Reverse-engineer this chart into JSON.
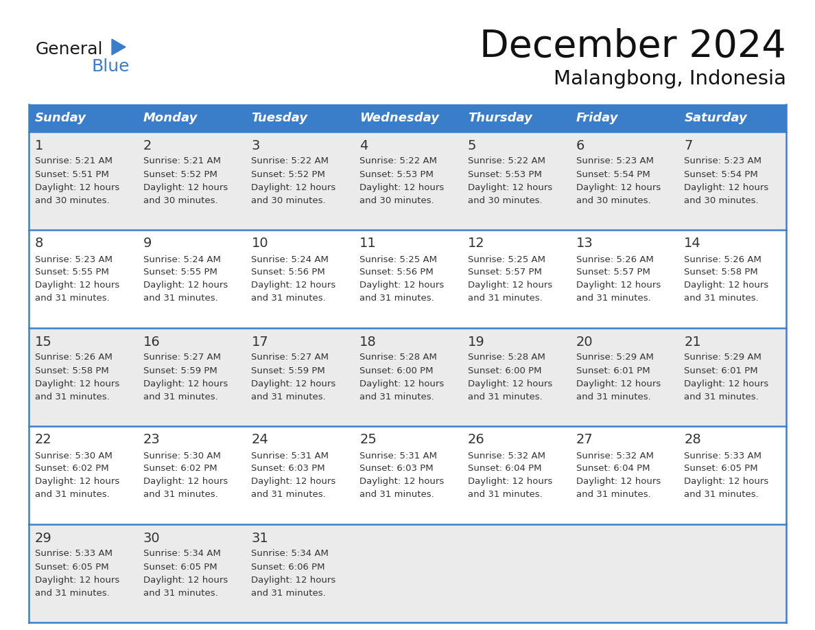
{
  "title": "December 2024",
  "subtitle": "Malangbong, Indonesia",
  "header_color": "#3A7DC9",
  "header_text_color": "#FFFFFF",
  "days_of_week": [
    "Sunday",
    "Monday",
    "Tuesday",
    "Wednesday",
    "Thursday",
    "Friday",
    "Saturday"
  ],
  "bg_color": "#FFFFFF",
  "row_bg_odd": "#EBEBEB",
  "row_bg_even": "#FFFFFF",
  "border_color": "#3A7DC9",
  "text_color": "#333333",
  "day_num_color": "#333333",
  "logo_general_color": "#1A1A1A",
  "logo_blue_color": "#3A7DC9",
  "calendar_data": [
    [
      {
        "day": 1,
        "sunrise": "5:21 AM",
        "sunset": "5:51 PM",
        "daylight_mins": "30"
      },
      {
        "day": 2,
        "sunrise": "5:21 AM",
        "sunset": "5:52 PM",
        "daylight_mins": "30"
      },
      {
        "day": 3,
        "sunrise": "5:22 AM",
        "sunset": "5:52 PM",
        "daylight_mins": "30"
      },
      {
        "day": 4,
        "sunrise": "5:22 AM",
        "sunset": "5:53 PM",
        "daylight_mins": "30"
      },
      {
        "day": 5,
        "sunrise": "5:22 AM",
        "sunset": "5:53 PM",
        "daylight_mins": "30"
      },
      {
        "day": 6,
        "sunrise": "5:23 AM",
        "sunset": "5:54 PM",
        "daylight_mins": "30"
      },
      {
        "day": 7,
        "sunrise": "5:23 AM",
        "sunset": "5:54 PM",
        "daylight_mins": "30"
      }
    ],
    [
      {
        "day": 8,
        "sunrise": "5:23 AM",
        "sunset": "5:55 PM",
        "daylight_mins": "31"
      },
      {
        "day": 9,
        "sunrise": "5:24 AM",
        "sunset": "5:55 PM",
        "daylight_mins": "31"
      },
      {
        "day": 10,
        "sunrise": "5:24 AM",
        "sunset": "5:56 PM",
        "daylight_mins": "31"
      },
      {
        "day": 11,
        "sunrise": "5:25 AM",
        "sunset": "5:56 PM",
        "daylight_mins": "31"
      },
      {
        "day": 12,
        "sunrise": "5:25 AM",
        "sunset": "5:57 PM",
        "daylight_mins": "31"
      },
      {
        "day": 13,
        "sunrise": "5:26 AM",
        "sunset": "5:57 PM",
        "daylight_mins": "31"
      },
      {
        "day": 14,
        "sunrise": "5:26 AM",
        "sunset": "5:58 PM",
        "daylight_mins": "31"
      }
    ],
    [
      {
        "day": 15,
        "sunrise": "5:26 AM",
        "sunset": "5:58 PM",
        "daylight_mins": "31"
      },
      {
        "day": 16,
        "sunrise": "5:27 AM",
        "sunset": "5:59 PM",
        "daylight_mins": "31"
      },
      {
        "day": 17,
        "sunrise": "5:27 AM",
        "sunset": "5:59 PM",
        "daylight_mins": "31"
      },
      {
        "day": 18,
        "sunrise": "5:28 AM",
        "sunset": "6:00 PM",
        "daylight_mins": "31"
      },
      {
        "day": 19,
        "sunrise": "5:28 AM",
        "sunset": "6:00 PM",
        "daylight_mins": "31"
      },
      {
        "day": 20,
        "sunrise": "5:29 AM",
        "sunset": "6:01 PM",
        "daylight_mins": "31"
      },
      {
        "day": 21,
        "sunrise": "5:29 AM",
        "sunset": "6:01 PM",
        "daylight_mins": "31"
      }
    ],
    [
      {
        "day": 22,
        "sunrise": "5:30 AM",
        "sunset": "6:02 PM",
        "daylight_mins": "31"
      },
      {
        "day": 23,
        "sunrise": "5:30 AM",
        "sunset": "6:02 PM",
        "daylight_mins": "31"
      },
      {
        "day": 24,
        "sunrise": "5:31 AM",
        "sunset": "6:03 PM",
        "daylight_mins": "31"
      },
      {
        "day": 25,
        "sunrise": "5:31 AM",
        "sunset": "6:03 PM",
        "daylight_mins": "31"
      },
      {
        "day": 26,
        "sunrise": "5:32 AM",
        "sunset": "6:04 PM",
        "daylight_mins": "31"
      },
      {
        "day": 27,
        "sunrise": "5:32 AM",
        "sunset": "6:04 PM",
        "daylight_mins": "31"
      },
      {
        "day": 28,
        "sunrise": "5:33 AM",
        "sunset": "6:05 PM",
        "daylight_mins": "31"
      }
    ],
    [
      {
        "day": 29,
        "sunrise": "5:33 AM",
        "sunset": "6:05 PM",
        "daylight_mins": "31"
      },
      {
        "day": 30,
        "sunrise": "5:34 AM",
        "sunset": "6:05 PM",
        "daylight_mins": "31"
      },
      {
        "day": 31,
        "sunrise": "5:34 AM",
        "sunset": "6:06 PM",
        "daylight_mins": "31"
      },
      null,
      null,
      null,
      null
    ]
  ]
}
